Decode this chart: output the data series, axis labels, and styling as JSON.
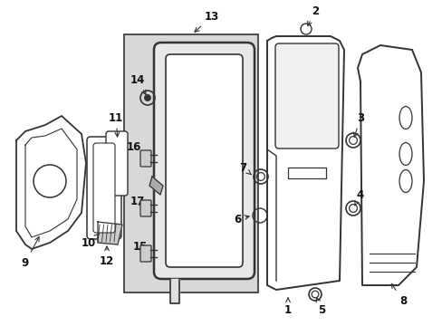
{
  "bg_color": "#ffffff",
  "line_color": "#333333",
  "box_bg": "#d8d8d8",
  "figsize": [
    4.89,
    3.6
  ],
  "dpi": 100
}
